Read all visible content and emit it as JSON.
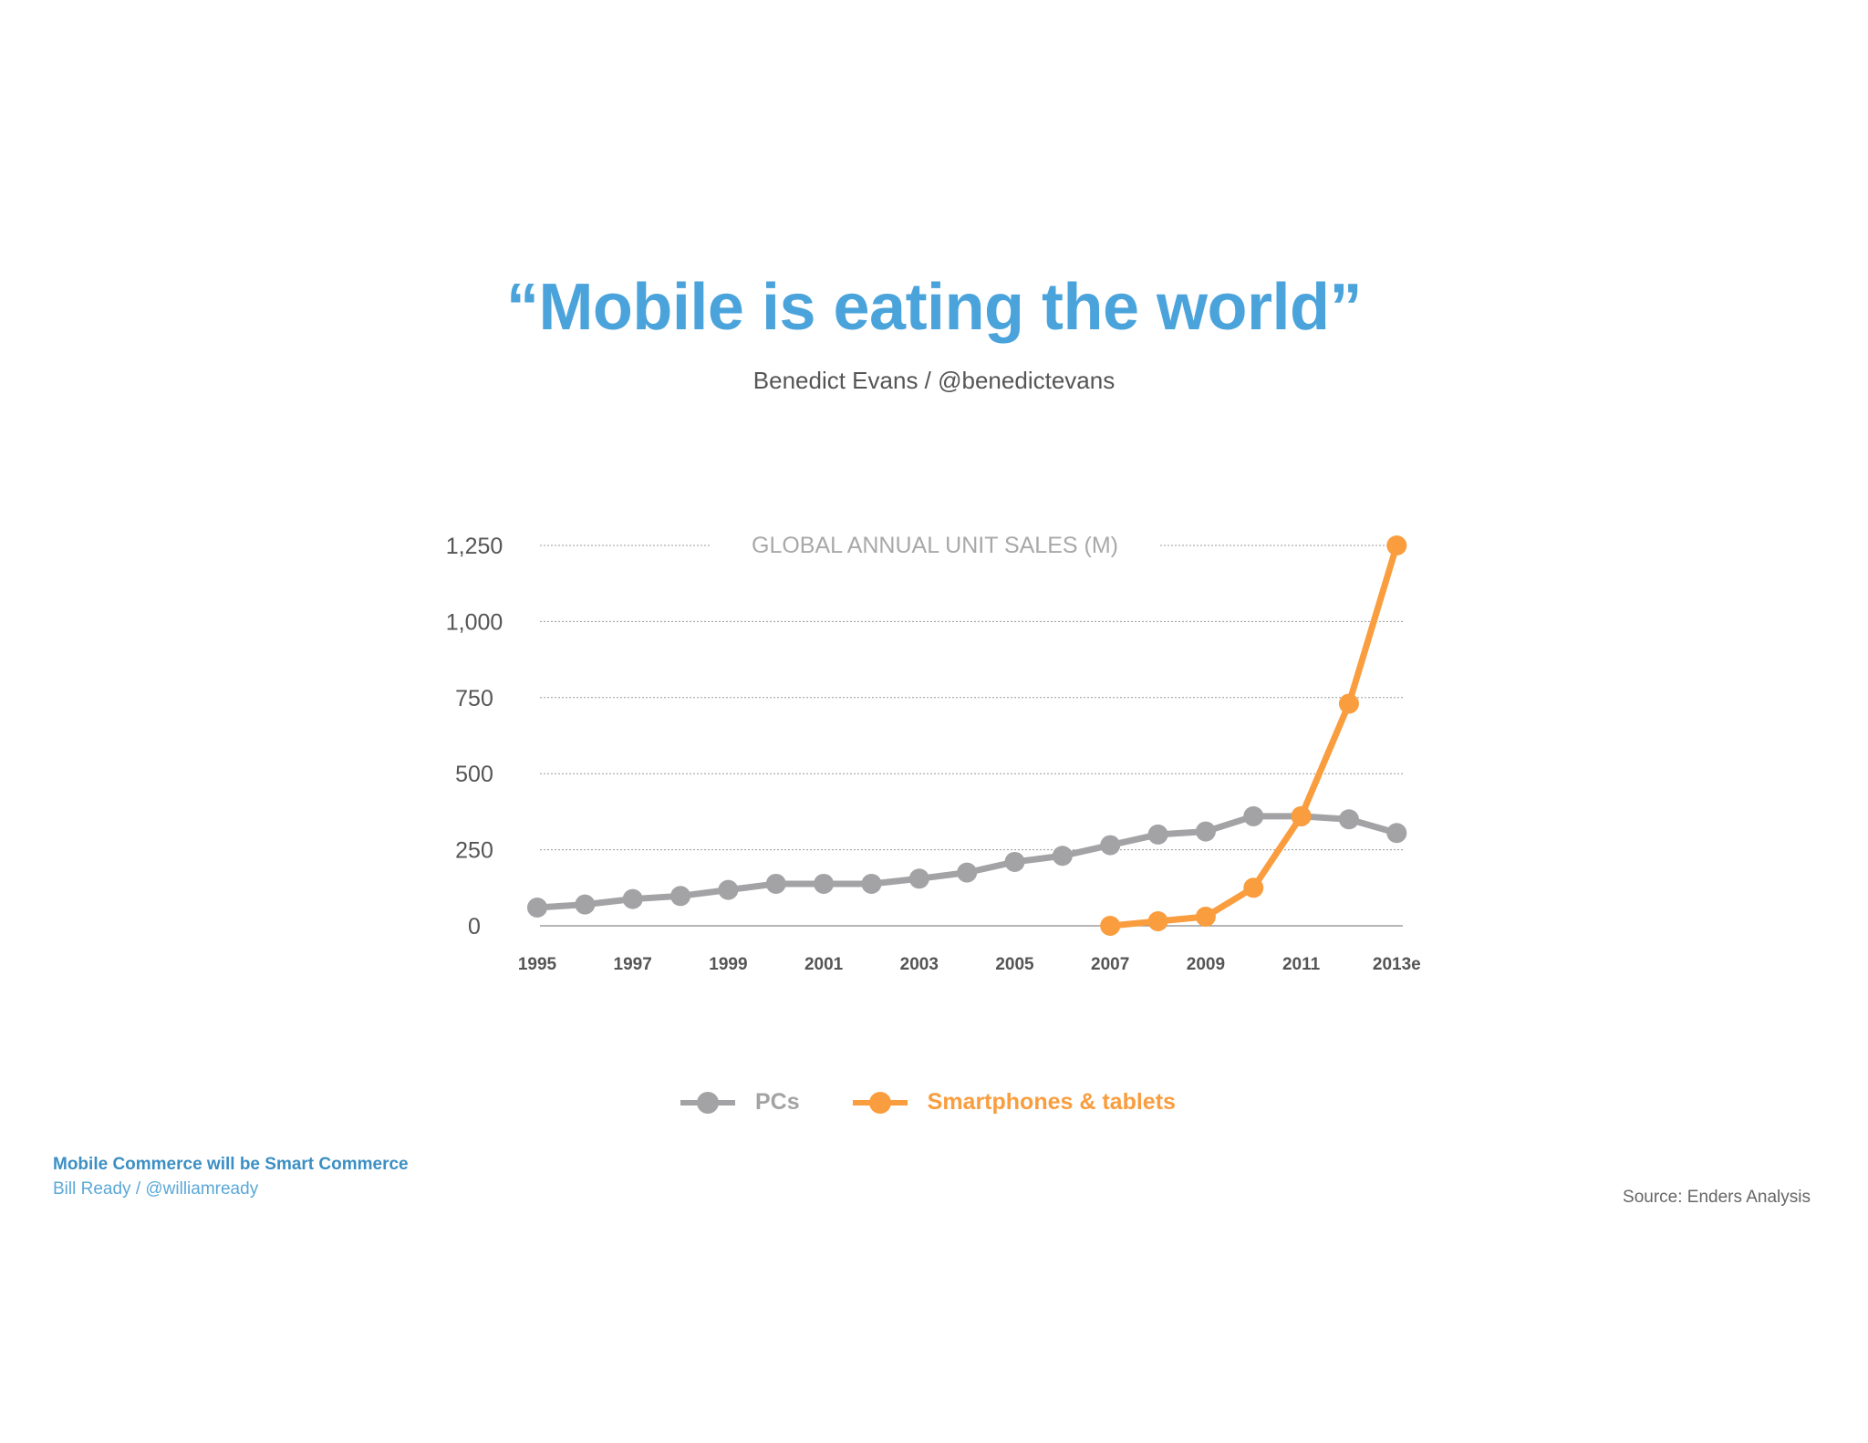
{
  "slide": {
    "title": "“Mobile is eating the world”",
    "subtitle": "Benedict Evans / @benedictevans"
  },
  "footer": {
    "deck_title": "Mobile Commerce will be Smart Commerce",
    "deck_author": "Bill Ready / @williamready",
    "source": "Source: Enders Analysis"
  },
  "colors": {
    "title": "#4aa3da",
    "pcs": "#a3a3a5",
    "mobile": "#f99d3e",
    "axis_text": "#555555",
    "chart_title": "#a8a8a8"
  },
  "legend": {
    "pcs_label": "PCs",
    "mobile_label": "Smartphones & tablets"
  },
  "chart_data": {
    "type": "line",
    "title": "GLOBAL ANNUAL UNIT SALES (M)",
    "xlabel": "",
    "ylabel": "",
    "ylim": [
      0,
      1250
    ],
    "yticks": [
      0,
      250,
      500,
      750,
      1000,
      1250
    ],
    "ytick_labels": [
      "0",
      "250",
      "500",
      "750",
      "1,000",
      "1,250"
    ],
    "x": [
      "1995",
      "1996",
      "1997",
      "1998",
      "1999",
      "2000",
      "2001",
      "2002",
      "2003",
      "2004",
      "2005",
      "2006",
      "2007",
      "2008",
      "2009",
      "2010",
      "2011",
      "2012",
      "2013e"
    ],
    "xtick_labels": [
      "1995",
      "1997",
      "1999",
      "2001",
      "2003",
      "2005",
      "2007",
      "2009",
      "2011",
      "2013e"
    ],
    "grid": true,
    "legend_position": "bottom",
    "series": [
      {
        "name": "PCs",
        "values": [
          60,
          70,
          88,
          98,
          118,
          138,
          138,
          138,
          155,
          175,
          210,
          230,
          265,
          300,
          310,
          360,
          360,
          350,
          305
        ]
      },
      {
        "name": "Smartphones & tablets",
        "values": [
          null,
          null,
          null,
          null,
          null,
          null,
          null,
          null,
          null,
          null,
          null,
          null,
          0,
          15,
          30,
          125,
          360,
          730,
          1250
        ]
      }
    ]
  }
}
